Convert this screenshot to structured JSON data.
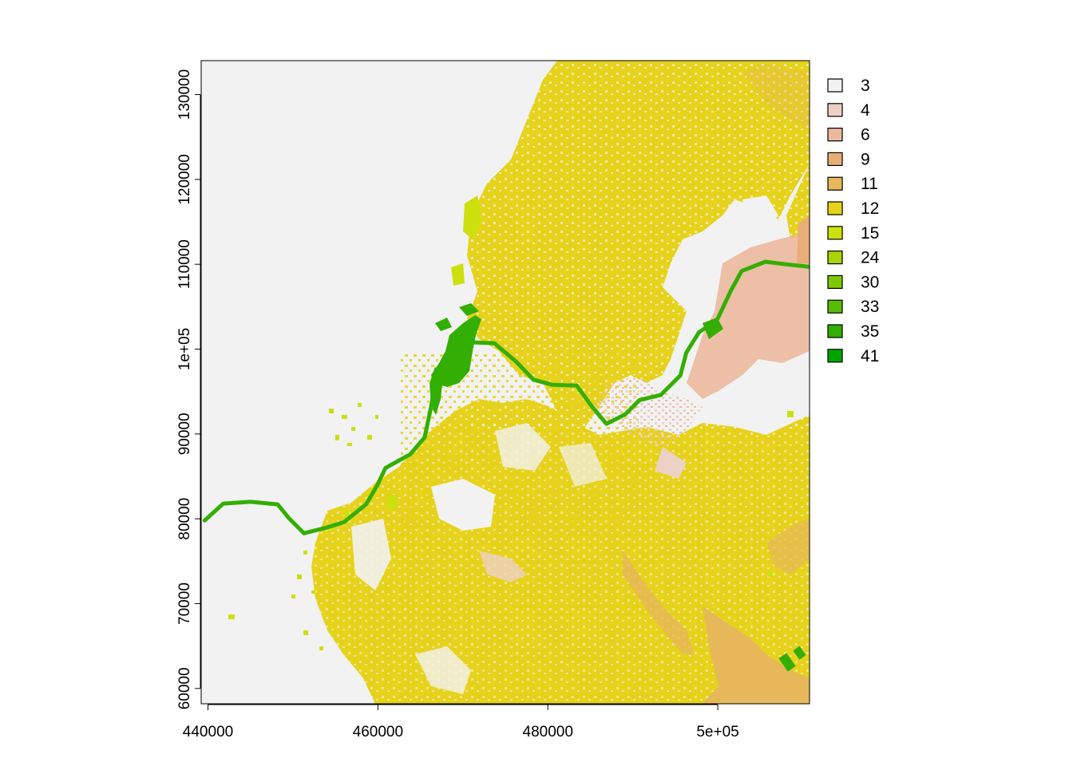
{
  "chart_data": {
    "type": "heatmap",
    "title": "",
    "xlabel": "",
    "ylabel": "",
    "xlim": [
      439200,
      510800
    ],
    "ylim": [
      58200,
      134000
    ],
    "x_ticks": [
      {
        "value": 440000,
        "label": "440000"
      },
      {
        "value": 460000,
        "label": "460000"
      },
      {
        "value": 480000,
        "label": "480000"
      },
      {
        "value": 500000,
        "label": "5e+05"
      }
    ],
    "y_ticks": [
      {
        "value": 60000,
        "label": "60000"
      },
      {
        "value": 70000,
        "label": "70000"
      },
      {
        "value": 80000,
        "label": "80000"
      },
      {
        "value": 90000,
        "label": "90000"
      },
      {
        "value": 100000,
        "label": "1e+05"
      },
      {
        "value": 110000,
        "label": "110000"
      },
      {
        "value": 120000,
        "label": "120000"
      },
      {
        "value": 130000,
        "label": "130000"
      }
    ],
    "legend": {
      "position": "right",
      "entries": [
        {
          "label": "3",
          "color": "#f2f2f2"
        },
        {
          "label": "4",
          "color": "#eed1c5"
        },
        {
          "label": "6",
          "color": "#ecb99f"
        },
        {
          "label": "9",
          "color": "#e9ad78"
        },
        {
          "label": "11",
          "color": "#e6b85a"
        },
        {
          "label": "12",
          "color": "#e6d21a"
        },
        {
          "label": "15",
          "color": "#cce00e"
        },
        {
          "label": "24",
          "color": "#a8d408"
        },
        {
          "label": "30",
          "color": "#7fc806"
        },
        {
          "label": "33",
          "color": "#58bb04"
        },
        {
          "label": "35",
          "color": "#33ae02"
        },
        {
          "label": "41",
          "color": "#00a600"
        }
      ]
    },
    "regions": {
      "background_class": "3",
      "upland_class": "12",
      "river_class": "35",
      "river_course": [
        [
          439600,
          79800
        ],
        [
          441800,
          81800
        ],
        [
          445000,
          82000
        ],
        [
          448200,
          81700
        ],
        [
          449500,
          80100
        ],
        [
          451300,
          78300
        ],
        [
          454100,
          79000
        ],
        [
          456000,
          79600
        ],
        [
          458600,
          81700
        ],
        [
          459900,
          83900
        ],
        [
          460900,
          86000
        ],
        [
          463800,
          87600
        ],
        [
          465500,
          89600
        ],
        [
          466300,
          93400
        ],
        [
          466900,
          97300
        ],
        [
          468400,
          99700
        ],
        [
          471000,
          100800
        ],
        [
          473700,
          100700
        ],
        [
          476300,
          98500
        ],
        [
          478300,
          96400
        ],
        [
          480500,
          95800
        ],
        [
          483400,
          95700
        ],
        [
          485200,
          93200
        ],
        [
          486900,
          91200
        ],
        [
          489100,
          92300
        ],
        [
          490800,
          94000
        ],
        [
          493300,
          94600
        ],
        [
          495600,
          96900
        ],
        [
          496300,
          99600
        ],
        [
          497800,
          102000
        ],
        [
          499900,
          103400
        ],
        [
          501500,
          106800
        ],
        [
          502800,
          109200
        ],
        [
          505600,
          110300
        ],
        [
          508000,
          110000
        ],
        [
          510800,
          109700
        ]
      ],
      "lake_center": [
        469300,
        97300
      ]
    }
  }
}
